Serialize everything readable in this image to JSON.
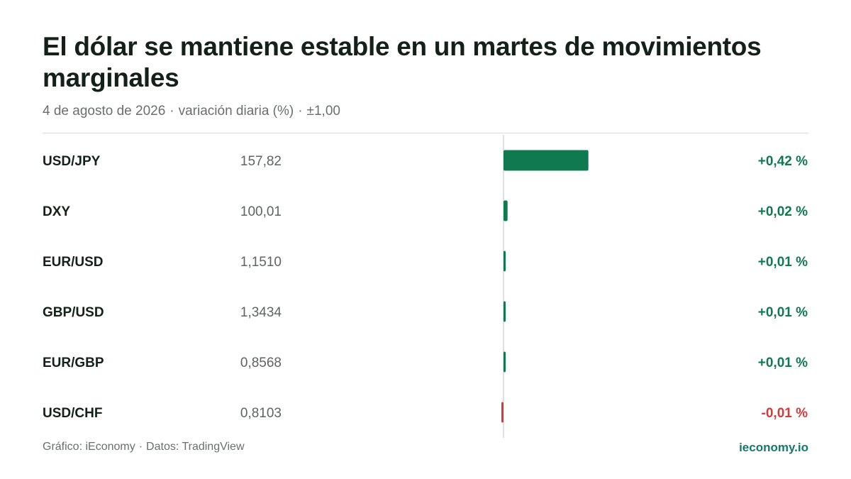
{
  "header": {
    "title": "El dólar se mantiene estable en un martes de movimientos marginales",
    "date": "4 de agosto de 2026",
    "measure": "variación diaria (%)",
    "scale": "±1,00"
  },
  "footer": {
    "chart_credit": "Gráfico: iEconomy",
    "data_credit": "Datos: TradingView",
    "site": "ieconomy.io"
  },
  "colors": {
    "positive": "#0f7a4f",
    "negative": "#d63a3a",
    "zero_line": "#d4d7d5",
    "label_text": "#14201a",
    "value_text": "#5f6461",
    "brand": "#127a6a"
  },
  "chart_data": {
    "type": "bar",
    "orientation": "horizontal",
    "xlim": [
      -1.0,
      1.0
    ],
    "categories": [
      "USD/JPY",
      "DXY",
      "EUR/USD",
      "GBP/USD",
      "EUR/GBP",
      "USD/CHF"
    ],
    "prices": [
      "157,82",
      "100,01",
      "1,1510",
      "1,3434",
      "0,8568",
      "0,8103"
    ],
    "values": [
      0.42,
      0.02,
      0.01,
      0.01,
      0.01,
      -0.01
    ],
    "value_labels": [
      "+0,42 %",
      "+0,02 %",
      "+0,01 %",
      "+0,01 %",
      "+0,01 %",
      "-0,01 %"
    ]
  }
}
